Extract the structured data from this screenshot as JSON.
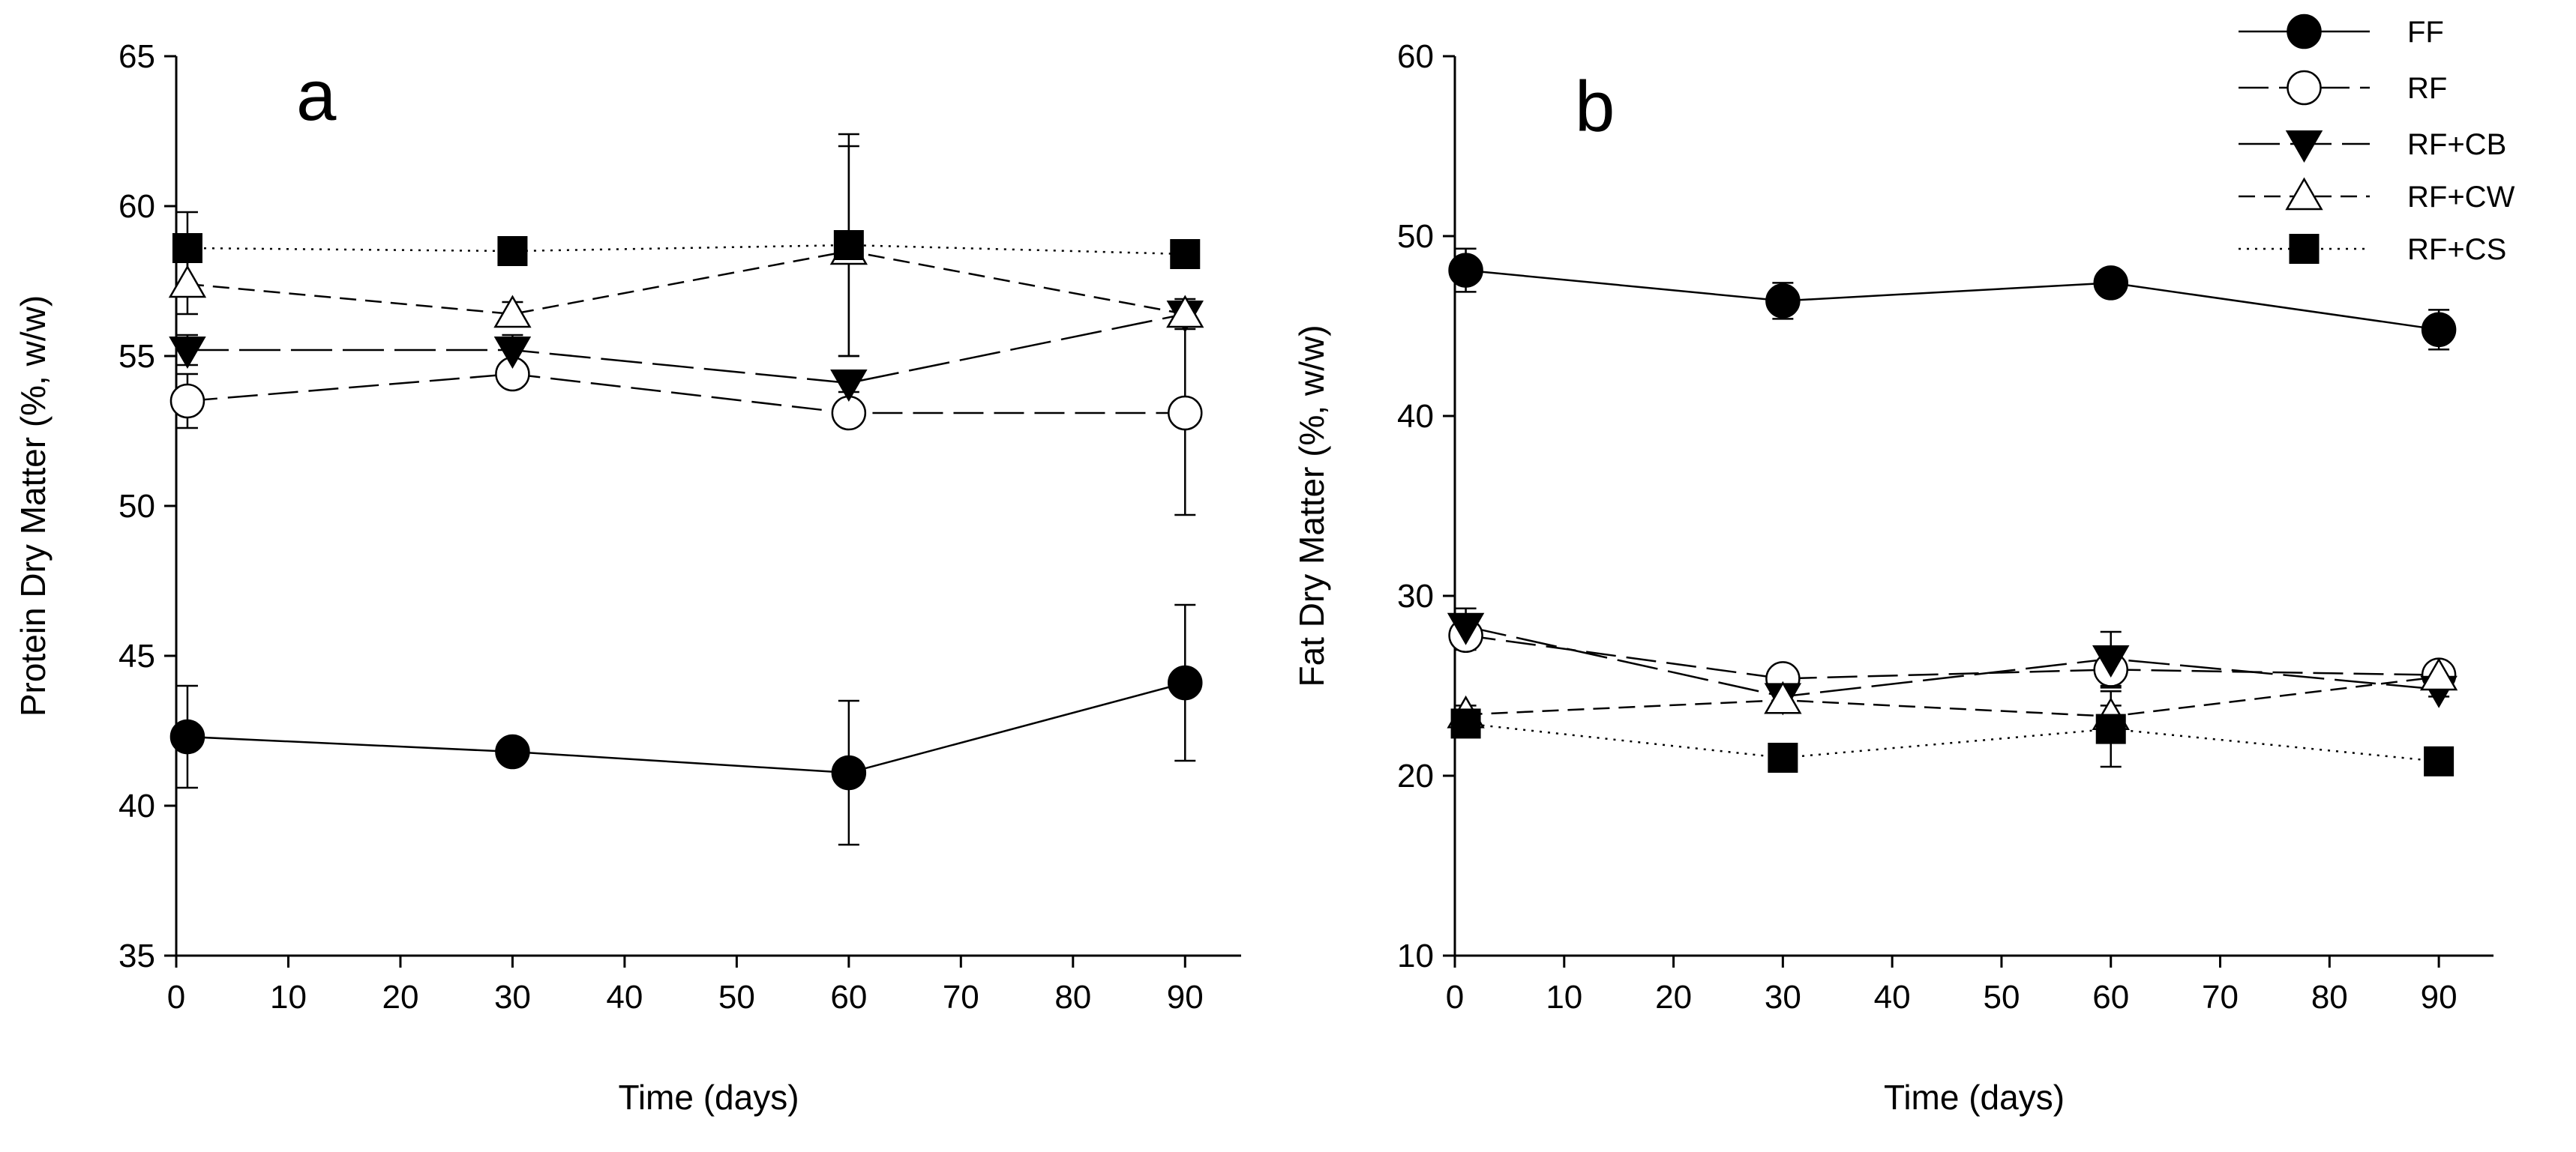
{
  "chart_data": [
    {
      "type": "line",
      "panel_label": "a",
      "xlabel": "Time (days)",
      "ylabel": "Protein Dry Matter (%, w/w)",
      "xlim": [
        0,
        95
      ],
      "ylim": [
        35,
        65
      ],
      "xticks": [
        0,
        10,
        20,
        30,
        40,
        50,
        60,
        70,
        80,
        90
      ],
      "yticks": [
        35,
        40,
        45,
        50,
        55,
        60,
        65
      ],
      "x": [
        1,
        30,
        60,
        90
      ],
      "series": [
        {
          "name": "FF",
          "marker": "circle-filled",
          "dash": "solid",
          "values": [
            42.3,
            41.8,
            41.1,
            44.1
          ],
          "errors": [
            1.7,
            0.2,
            2.4,
            2.6
          ]
        },
        {
          "name": "RF",
          "marker": "circle-open",
          "dash": "longdash",
          "values": [
            53.5,
            54.4,
            53.1,
            53.1
          ],
          "errors": [
            0.9,
            0.3,
            0.4,
            3.4
          ]
        },
        {
          "name": "RF+CB",
          "marker": "triangle-down-filled",
          "dash": "longdash2",
          "values": [
            55.2,
            55.2,
            54.1,
            56.4
          ],
          "errors": [
            0.5,
            0.5,
            0.3,
            0.4
          ]
        },
        {
          "name": "RF+CW",
          "marker": "triangle-up-open",
          "dash": "dashed",
          "values": [
            57.4,
            56.4,
            58.5,
            56.4
          ],
          "errors": [
            1.0,
            0.4,
            3.5,
            0.5
          ]
        },
        {
          "name": "RF+CS",
          "marker": "square-filled",
          "dash": "dotted",
          "values": [
            58.6,
            58.5,
            58.7,
            58.4
          ],
          "errors": [
            1.2,
            0.2,
            3.7,
            0.2
          ]
        }
      ]
    },
    {
      "type": "line",
      "panel_label": "b",
      "xlabel": "Time (days)",
      "ylabel": "Fat Dry Matter (%, w/w)",
      "xlim": [
        0,
        95
      ],
      "ylim": [
        10,
        60
      ],
      "xticks": [
        0,
        10,
        20,
        30,
        40,
        50,
        60,
        70,
        80,
        90
      ],
      "yticks": [
        10,
        20,
        30,
        40,
        50,
        60
      ],
      "x": [
        1,
        30,
        60,
        90
      ],
      "series": [
        {
          "name": "FF",
          "marker": "circle-filled",
          "dash": "solid",
          "values": [
            48.1,
            46.4,
            47.4,
            44.8
          ],
          "errors": [
            1.2,
            1.0,
            0.2,
            1.1
          ]
        },
        {
          "name": "RF",
          "marker": "circle-open",
          "dash": "longdash",
          "values": [
            27.8,
            25.4,
            25.9,
            25.6
          ],
          "errors": [
            0.8,
            0.3,
            1.0,
            0.3
          ]
        },
        {
          "name": "RF+CB",
          "marker": "triangle-down-filled",
          "dash": "longdash2",
          "values": [
            28.3,
            24.4,
            26.5,
            24.8
          ],
          "errors": [
            1.0,
            0.3,
            1.5,
            0.4
          ]
        },
        {
          "name": "RF+CW",
          "marker": "triangle-up-open",
          "dash": "dashed",
          "values": [
            23.4,
            24.2,
            23.3,
            25.5
          ],
          "errors": [
            0.5,
            0.7,
            0.6,
            0.4
          ]
        },
        {
          "name": "RF+CS",
          "marker": "square-filled",
          "dash": "dotted",
          "values": [
            22.9,
            21.0,
            22.6,
            20.8
          ],
          "errors": [
            0.4,
            0.2,
            2.1,
            0.2
          ]
        }
      ]
    }
  ],
  "legend": {
    "placement": "top-right",
    "items": [
      "FF",
      "RF",
      "RF+CB",
      "RF+CW",
      "RF+CS"
    ]
  }
}
